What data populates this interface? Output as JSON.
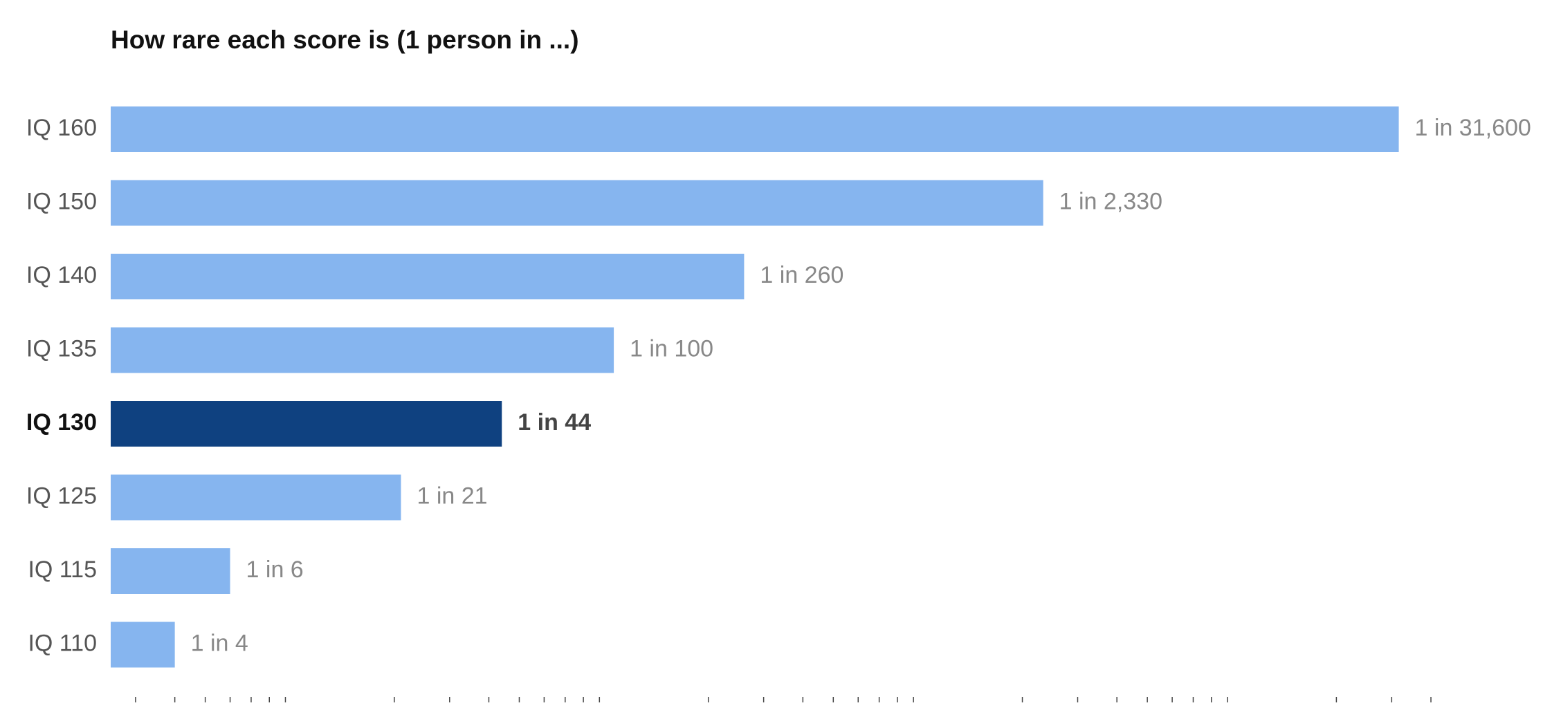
{
  "chart_data": {
    "type": "bar",
    "orientation": "horizontal",
    "title": "How rare each score is (1 person in ...)",
    "categories": [
      "IQ 160",
      "IQ 150",
      "IQ 140",
      "IQ 135",
      "IQ 130",
      "IQ 125",
      "IQ 115",
      "IQ 110"
    ],
    "values": [
      31600,
      2330,
      260,
      100,
      44,
      21,
      6,
      4
    ],
    "value_labels": [
      "1 in 31,600",
      "1 in 2,330",
      "1 in 260",
      "1 in 100",
      "1 in 44",
      "1 in 21",
      "1 in 6",
      "1 in 4"
    ],
    "color": "#86b5ef",
    "colors": [
      "#86b5ef",
      "#86b5ef",
      "#86b5ef",
      "#86b5ef",
      "#0f4180",
      "#86b5ef",
      "#86b5ef",
      "#86b5ef"
    ],
    "xscale": "log",
    "xlim": [
      2.5,
      50000
    ],
    "xticks": [
      3,
      4,
      5,
      6,
      7,
      8,
      9,
      20,
      30,
      40,
      50,
      60,
      70,
      80,
      90,
      200,
      300,
      400,
      500,
      600,
      700,
      800,
      900,
      2000,
      3000,
      4000,
      5000,
      6000,
      7000,
      8000,
      9000,
      20000,
      30000,
      40000
    ],
    "grid": false
  }
}
